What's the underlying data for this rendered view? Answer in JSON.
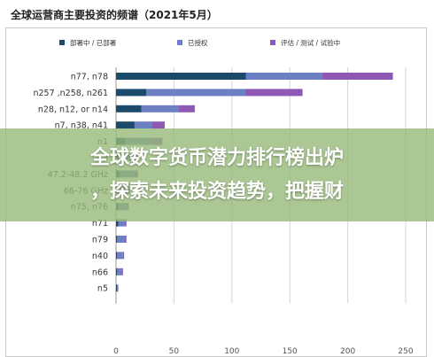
{
  "overlay": {
    "line1": "全球数字货币潜力排行榜出炉",
    "line2": "，探索未来投资趋势，把握财"
  },
  "chart_data": {
    "type": "bar",
    "orientation": "horizontal",
    "stacked": true,
    "title": "全球运营商主要投资的频谱（2021年5月）",
    "legend_position": "top",
    "xlim": [
      0,
      250
    ],
    "xticks": [
      0,
      50,
      100,
      150,
      200,
      250
    ],
    "grid": true,
    "colors": {
      "deployed": "#1c4a6b",
      "licensed": "#6a7fc4",
      "testing": "#8e58b4"
    },
    "categories": [
      "n77, n78",
      "n257 ,n258, n261",
      "n28, n12, or n14",
      "n7, n38, n41",
      "n1",
      "n3",
      "47.2-48.2 GHz",
      "66-76 GHz",
      "n75, n76",
      "n71",
      "n79",
      "n40",
      "n66",
      "n5"
    ],
    "series": [
      {
        "name": "部署中 / 已部署",
        "key": "deployed",
        "values": [
          112,
          26,
          22,
          16,
          8,
          6,
          3,
          0,
          2,
          2,
          1,
          1,
          1,
          1
        ]
      },
      {
        "name": "已授权",
        "key": "licensed",
        "values": [
          66,
          86,
          32,
          15,
          22,
          9,
          13,
          0,
          8,
          6,
          7,
          5,
          4,
          1
        ]
      },
      {
        "name": "评估 / 测试 / 试验中",
        "key": "testing",
        "values": [
          61,
          49,
          14,
          11,
          10,
          4,
          3,
          12,
          1,
          1,
          1,
          1,
          1,
          0
        ]
      }
    ]
  }
}
